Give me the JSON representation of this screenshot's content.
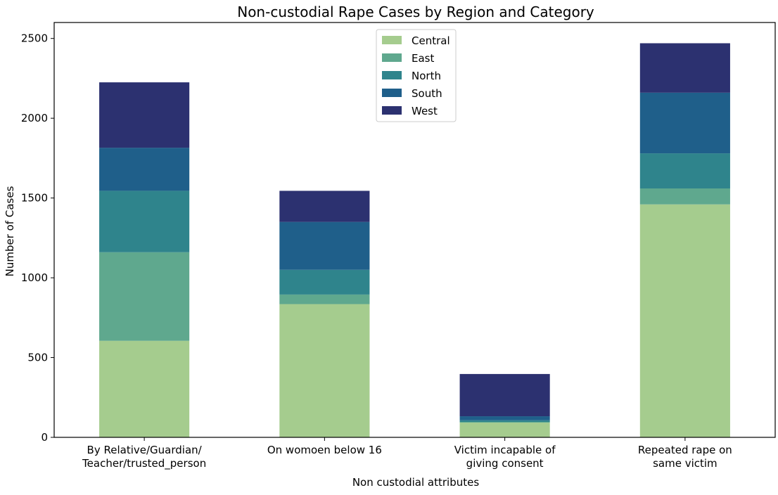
{
  "chart_data": {
    "type": "bar",
    "stacked": true,
    "title": "Non-custodial Rape Cases by Region and Category",
    "xlabel": "Non custodial attributes",
    "ylabel": "Number of Cases",
    "ylim": [
      0,
      2600
    ],
    "yticks": [
      0,
      500,
      1000,
      1500,
      2000,
      2500
    ],
    "grid": false,
    "legend_position": "top-center",
    "categories": [
      [
        "By Relative/Guardian/",
        "Teacher/trusted_person"
      ],
      [
        "On womoen below 16"
      ],
      [
        "Victim incapable of",
        "giving consent"
      ],
      [
        "Repeated rape on",
        "same victim"
      ]
    ],
    "series": [
      {
        "name": "Central",
        "color": "#a5cc8e",
        "values": [
          605,
          835,
          92,
          1460
        ]
      },
      {
        "name": "East",
        "color": "#5fa88e",
        "values": [
          555,
          60,
          5,
          100
        ]
      },
      {
        "name": "North",
        "color": "#2f848c",
        "values": [
          385,
          155,
          10,
          220
        ]
      },
      {
        "name": "South",
        "color": "#1f5f8a",
        "values": [
          270,
          300,
          25,
          380
        ]
      },
      {
        "name": "West",
        "color": "#2c3170",
        "values": [
          410,
          195,
          265,
          310
        ]
      }
    ]
  }
}
